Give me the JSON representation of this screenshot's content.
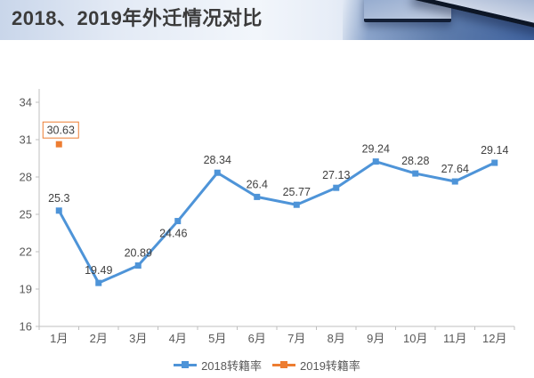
{
  "header": {
    "title": "2018、2019年外迁情况对比"
  },
  "chart_data": {
    "type": "line",
    "title": "2018、2019年外迁情况对比",
    "categories": [
      "1月",
      "2月",
      "3月",
      "4月",
      "5月",
      "6月",
      "7月",
      "8月",
      "9月",
      "10月",
      "11月",
      "12月"
    ],
    "series": [
      {
        "name": "2018转籍率",
        "color": "#4E94D8",
        "values": [
          25.3,
          19.49,
          20.89,
          24.46,
          28.34,
          26.4,
          25.77,
          27.13,
          29.24,
          28.28,
          27.64,
          29.14
        ],
        "data_labels": [
          "25.3",
          "19.49",
          "20.89",
          "24.46",
          "28.34",
          "26.4",
          "25.77",
          "27.13",
          "29.24",
          "28.28",
          "27.64",
          "29.14"
        ],
        "label_placement_overrides": {
          "3": "below"
        },
        "boxed_labels": false
      },
      {
        "name": "2019转籍率",
        "color": "#ED7D31",
        "values": [
          30.63,
          null,
          null,
          null,
          null,
          null,
          null,
          null,
          null,
          null,
          null,
          null
        ],
        "data_labels": [
          "30.63",
          "",
          "",
          "",
          "",
          "",
          "",
          "",
          "",
          "",
          "",
          ""
        ],
        "boxed_labels": true
      }
    ],
    "ylim": [
      16,
      34
    ],
    "yticks": [
      16,
      19,
      22,
      25,
      28,
      31,
      34
    ],
    "grid": false,
    "legend_position": "bottom",
    "axis_color": "#BFBFBF",
    "tick_label_color": "#595959",
    "data_label_color": "#404040"
  }
}
